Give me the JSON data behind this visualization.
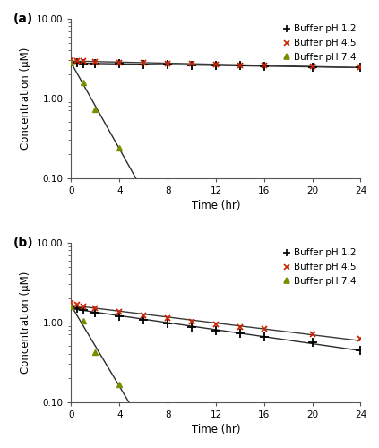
{
  "panel_a": {
    "title": "(a)",
    "series": [
      {
        "label": "Buffer pH 1.2",
        "marker_color": "#000000",
        "line_color": "#2b2b2b",
        "marker": "plus",
        "time": [
          0,
          0.5,
          1,
          2,
          4,
          6,
          8,
          10,
          12,
          14,
          16,
          20,
          24
        ],
        "conc": [
          2.8,
          2.77,
          2.75,
          2.73,
          2.7,
          2.67,
          2.64,
          2.61,
          2.58,
          2.56,
          2.53,
          2.49,
          2.45
        ]
      },
      {
        "label": "Buffer pH 4.5",
        "marker_color": "#cc2200",
        "line_color": "#3a3a3a",
        "marker": "x",
        "time": [
          0,
          0.5,
          1,
          2,
          4,
          6,
          8,
          10,
          12,
          14,
          16,
          20,
          24
        ],
        "conc": [
          3.0,
          2.95,
          2.92,
          2.88,
          2.83,
          2.78,
          2.74,
          2.7,
          2.66,
          2.62,
          2.58,
          2.52,
          2.47
        ]
      },
      {
        "label": "Buffer pH 7.4",
        "marker_color": "#7a8c00",
        "line_color": "#2b2b2b",
        "marker": "triangle",
        "time": [
          0,
          1,
          2,
          4
        ],
        "conc": [
          2.8,
          1.6,
          0.72,
          0.24
        ]
      }
    ]
  },
  "panel_b": {
    "title": "(b)",
    "series": [
      {
        "label": "Buffer pH 1.2",
        "marker_color": "#000000",
        "line_color": "#2b2b2b",
        "marker": "plus",
        "time": [
          0,
          0.5,
          1,
          2,
          4,
          6,
          8,
          10,
          12,
          14,
          16,
          20,
          24
        ],
        "conc": [
          1.58,
          1.5,
          1.42,
          1.32,
          1.18,
          1.06,
          0.96,
          0.87,
          0.79,
          0.72,
          0.66,
          0.56,
          0.45
        ]
      },
      {
        "label": "Buffer pH 4.5",
        "marker_color": "#cc2200",
        "line_color": "#3a3a3a",
        "marker": "x",
        "time": [
          0,
          0.5,
          1,
          2,
          4,
          6,
          8,
          10,
          12,
          14,
          16,
          20,
          24
        ],
        "conc": [
          1.75,
          1.67,
          1.6,
          1.49,
          1.35,
          1.22,
          1.12,
          1.03,
          0.95,
          0.88,
          0.82,
          0.71,
          0.62
        ]
      },
      {
        "label": "Buffer pH 7.4",
        "marker_color": "#7a8c00",
        "line_color": "#2b2b2b",
        "marker": "triangle",
        "time": [
          0,
          1,
          2,
          4
        ],
        "conc": [
          1.58,
          1.05,
          0.42,
          0.165
        ]
      }
    ]
  },
  "xlabel": "Time (hr)",
  "ylabel": "Concentration (μM)",
  "ylim": [
    0.1,
    10.0
  ],
  "xlim": [
    0,
    24
  ],
  "xticks": [
    0,
    4,
    8,
    12,
    16,
    20,
    24
  ],
  "background_color": "#ffffff",
  "legend_fontsize": 7.5,
  "axis_fontsize": 8.5,
  "tick_fontsize": 7.5
}
